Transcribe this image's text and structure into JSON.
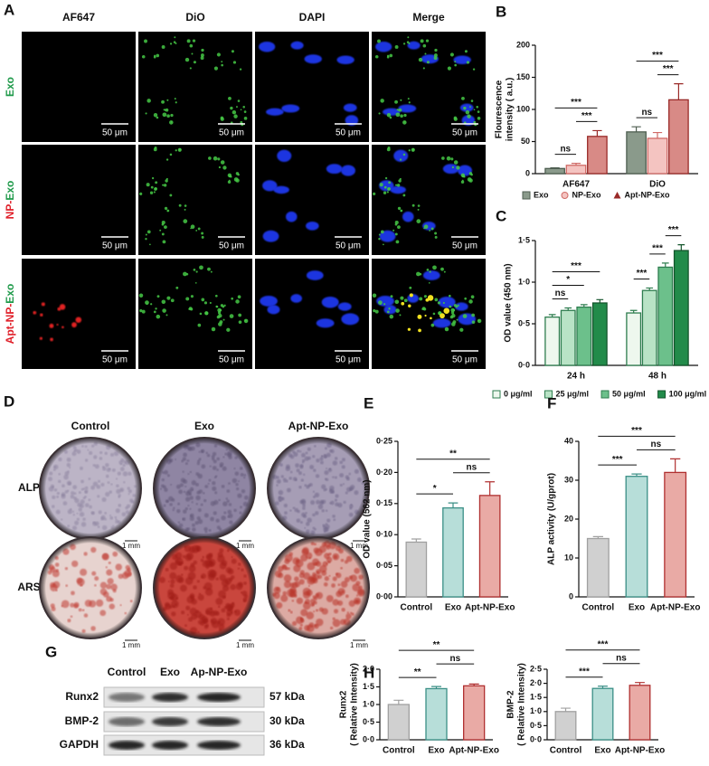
{
  "microscopy": {
    "panel": "A",
    "channels": [
      {
        "name": "AF647",
        "color": "#e0202a"
      },
      {
        "name": "DiO",
        "color": "#1f9a4a"
      },
      {
        "name": "DAPI",
        "color": "#1f4fd0"
      },
      {
        "name": "Merge",
        "color": "#111111"
      }
    ],
    "rows": [
      [
        {
          "text": "Exo",
          "color": "#1f9a4a"
        }
      ],
      [
        {
          "text": "NP-",
          "color": "#e0202a"
        },
        {
          "text": "Exo",
          "color": "#1f9a4a"
        }
      ],
      [
        {
          "text": "Apt-NP-",
          "color": "#e0202a"
        },
        {
          "text": "Exo",
          "color": "#1f9a4a"
        }
      ]
    ],
    "scale_bar": "50 μm"
  },
  "staining": {
    "panel": "D",
    "groups": [
      "Control",
      "Exo",
      "Apt-NP-Exo"
    ],
    "stains": [
      "ALP",
      "ARS"
    ],
    "scale_bar": "1 mm"
  },
  "western_blot": {
    "panel": "G",
    "groups": [
      "Control",
      "Exo",
      "Ap-NP-Exo"
    ],
    "bands": [
      {
        "protein": "Runx2",
        "size": "57 kDa"
      },
      {
        "protein": "BMP-2",
        "size": "30 kDa"
      },
      {
        "protein": "GAPDH",
        "size": "36 kDa"
      }
    ]
  },
  "chart_data": [
    {
      "type": "bar",
      "panel": "B",
      "ylabel": [
        "Flourescence",
        "intensity ( a.u.)"
      ],
      "categories": [
        "AF647",
        "DiO"
      ],
      "series": [
        {
          "name": "Exo",
          "color": "#8a9a8b",
          "edgecolor": "#4e5e50",
          "marker": "square",
          "values": [
            8,
            65
          ],
          "errors": [
            1,
            8
          ]
        },
        {
          "name": "NP-Exo",
          "color": "#f4c4c1",
          "edgecolor": "#d06a66",
          "marker": "circle",
          "values": [
            13,
            55
          ],
          "errors": [
            3,
            9
          ]
        },
        {
          "name": "Apt-NP-Exo",
          "color": "#d88a86",
          "edgecolor": "#9a2a28",
          "marker": "triangle",
          "values": [
            58,
            115
          ],
          "errors": [
            9,
            25
          ]
        }
      ],
      "ylim": [
        0,
        200
      ],
      "yticks": [
        0,
        50,
        100,
        150,
        200
      ],
      "legend": "bottom",
      "annotations": [
        {
          "category": "AF647",
          "between": [
            "Exo",
            "NP-Exo"
          ],
          "label": "ns"
        },
        {
          "category": "AF647",
          "between": [
            "NP-Exo",
            "Apt-NP-Exo"
          ],
          "label": "***"
        },
        {
          "category": "AF647",
          "between": [
            "Exo",
            "Apt-NP-Exo"
          ],
          "label": "***"
        },
        {
          "category": "DiO",
          "between": [
            "Exo",
            "NP-Exo"
          ],
          "label": "ns"
        },
        {
          "category": "DiO",
          "between": [
            "NP-Exo",
            "Apt-NP-Exo"
          ],
          "label": "***"
        },
        {
          "category": "DiO",
          "between": [
            "Exo",
            "Apt-NP-Exo"
          ],
          "label": "***"
        }
      ]
    },
    {
      "type": "bar",
      "panel": "C",
      "ylabel": [
        "OD value (450 nm)"
      ],
      "categories": [
        "24 h",
        "48 h"
      ],
      "series": [
        {
          "name": "0 μg/ml",
          "color": "#eef7ee",
          "edgecolor": "#2e7d4f",
          "values": [
            0.58,
            0.63
          ],
          "errors": [
            0.03,
            0.03
          ]
        },
        {
          "name": "25 μg/ml",
          "color": "#b9e3c6",
          "edgecolor": "#2e7d4f",
          "values": [
            0.66,
            0.9
          ],
          "errors": [
            0.03,
            0.03
          ]
        },
        {
          "name": "50 μg/ml",
          "color": "#6cc08b",
          "edgecolor": "#2e7d4f",
          "values": [
            0.7,
            1.18
          ],
          "errors": [
            0.03,
            0.05
          ]
        },
        {
          "name": "100 μg/ml",
          "color": "#228b4a",
          "edgecolor": "#14552c",
          "values": [
            0.75,
            1.38
          ],
          "errors": [
            0.04,
            0.07
          ]
        }
      ],
      "ylim": [
        0,
        1.5
      ],
      "yticks": [
        {
          "value": 0,
          "label": "0·0"
        },
        {
          "value": 0.5,
          "label": "0·5"
        },
        {
          "value": 1,
          "label": "1·0"
        },
        {
          "value": 1.5,
          "label": "1·5"
        }
      ],
      "legend": "bottom",
      "annotations": [
        {
          "category": "24 h",
          "between": [
            "0 μg/ml",
            "25 μg/ml"
          ],
          "label": "ns"
        },
        {
          "category": "24 h",
          "between": [
            "0 μg/ml",
            "50 μg/ml"
          ],
          "label": "*"
        },
        {
          "category": "24 h",
          "between": [
            "0 μg/ml",
            "100 μg/ml"
          ],
          "label": "***"
        },
        {
          "category": "48 h",
          "between": [
            "0 μg/ml",
            "25 μg/ml"
          ],
          "label": "***"
        },
        {
          "category": "48 h",
          "between": [
            "25 μg/ml",
            "50 μg/ml"
          ],
          "label": "***"
        },
        {
          "category": "48 h",
          "between": [
            "50 μg/ml",
            "100 μg/ml"
          ],
          "label": "***"
        }
      ]
    },
    {
      "type": "bar",
      "panel": "E",
      "ylabel": [
        "OD value (562 nm)"
      ],
      "categories": [
        "Control",
        "Exo",
        "Apt-NP-Exo"
      ],
      "values": [
        0.088,
        0.143,
        0.163
      ],
      "errors": [
        0.005,
        0.008,
        0.022
      ],
      "colors": [
        "#d0d0d0",
        "#b7ded9",
        "#e9aaa5"
      ],
      "edgecolors": [
        "#a0a0a0",
        "#3a8f86",
        "#b03030"
      ],
      "ylim": [
        0,
        0.25
      ],
      "yticks": [
        {
          "value": 0,
          "label": "0·00"
        },
        {
          "value": 0.05,
          "label": "0·05"
        },
        {
          "value": 0.1,
          "label": "0·10"
        },
        {
          "value": 0.15,
          "label": "0·15"
        },
        {
          "value": 0.2,
          "label": "0·20"
        },
        {
          "value": 0.25,
          "label": "0·25"
        }
      ],
      "annotations": [
        {
          "between": [
            "Control",
            "Exo"
          ],
          "label": "*"
        },
        {
          "between": [
            "Exo",
            "Apt-NP-Exo"
          ],
          "label": "ns"
        },
        {
          "between": [
            "Control",
            "Apt-NP-Exo"
          ],
          "label": "**"
        }
      ]
    },
    {
      "type": "bar",
      "panel": "F",
      "ylabel": [
        "ALP activity (U/gprot)"
      ],
      "categories": [
        "Control",
        "Exo",
        "Apt-NP-Exo"
      ],
      "values": [
        15,
        31,
        32
      ],
      "errors": [
        0.5,
        0.6,
        3.5
      ],
      "colors": [
        "#d0d0d0",
        "#b7ded9",
        "#e9aaa5"
      ],
      "edgecolors": [
        "#a0a0a0",
        "#3a8f86",
        "#b03030"
      ],
      "ylim": [
        0,
        40
      ],
      "yticks": [
        0,
        10,
        20,
        30,
        40
      ],
      "annotations": [
        {
          "between": [
            "Control",
            "Exo"
          ],
          "label": "***"
        },
        {
          "between": [
            "Exo",
            "Apt-NP-Exo"
          ],
          "label": "ns"
        },
        {
          "between": [
            "Control",
            "Apt-NP-Exo"
          ],
          "label": "***"
        }
      ]
    },
    {
      "type": "bar",
      "panel": "H",
      "ylabel": [
        "Runx2",
        "( Relative Intensity)"
      ],
      "categories": [
        "Control",
        "Exo",
        "Apt-NP-Exo"
      ],
      "values": [
        1.0,
        1.45,
        1.53
      ],
      "errors": [
        0.12,
        0.06,
        0.05
      ],
      "colors": [
        "#d0d0d0",
        "#b7ded9",
        "#e9aaa5"
      ],
      "edgecolors": [
        "#a0a0a0",
        "#3a8f86",
        "#b03030"
      ],
      "ylim": [
        0,
        2
      ],
      "yticks": [
        {
          "value": 0,
          "label": "0·0"
        },
        {
          "value": 0.5,
          "label": "0·5"
        },
        {
          "value": 1,
          "label": "1·0"
        },
        {
          "value": 1.5,
          "label": "1·5"
        },
        {
          "value": 2,
          "label": "2·0"
        }
      ],
      "annotations": [
        {
          "between": [
            "Control",
            "Exo"
          ],
          "label": "**"
        },
        {
          "between": [
            "Exo",
            "Apt-NP-Exo"
          ],
          "label": "ns"
        },
        {
          "between": [
            "Control",
            "Apt-NP-Exo"
          ],
          "label": "**"
        }
      ]
    },
    {
      "type": "bar",
      "ylabel": [
        "BMP-2",
        "( Relative Intensity)"
      ],
      "categories": [
        "Control",
        "Exo",
        "Apt-NP-Exo"
      ],
      "values": [
        1.0,
        1.82,
        1.93
      ],
      "errors": [
        0.12,
        0.08,
        0.1
      ],
      "colors": [
        "#d0d0d0",
        "#b7ded9",
        "#e9aaa5"
      ],
      "edgecolors": [
        "#a0a0a0",
        "#3a8f86",
        "#b03030"
      ],
      "ylim": [
        0,
        2.5
      ],
      "yticks": [
        {
          "value": 0,
          "label": "0·0"
        },
        {
          "value": 0.5,
          "label": "0·5"
        },
        {
          "value": 1,
          "label": "1·0"
        },
        {
          "value": 1.5,
          "label": "1·5"
        },
        {
          "value": 2,
          "label": "2·0"
        },
        {
          "value": 2.5,
          "label": "2·5"
        }
      ],
      "annotations": [
        {
          "between": [
            "Control",
            "Exo"
          ],
          "label": "***"
        },
        {
          "between": [
            "Exo",
            "Apt-NP-Exo"
          ],
          "label": "ns"
        },
        {
          "between": [
            "Control",
            "Apt-NP-Exo"
          ],
          "label": "***"
        }
      ]
    }
  ]
}
